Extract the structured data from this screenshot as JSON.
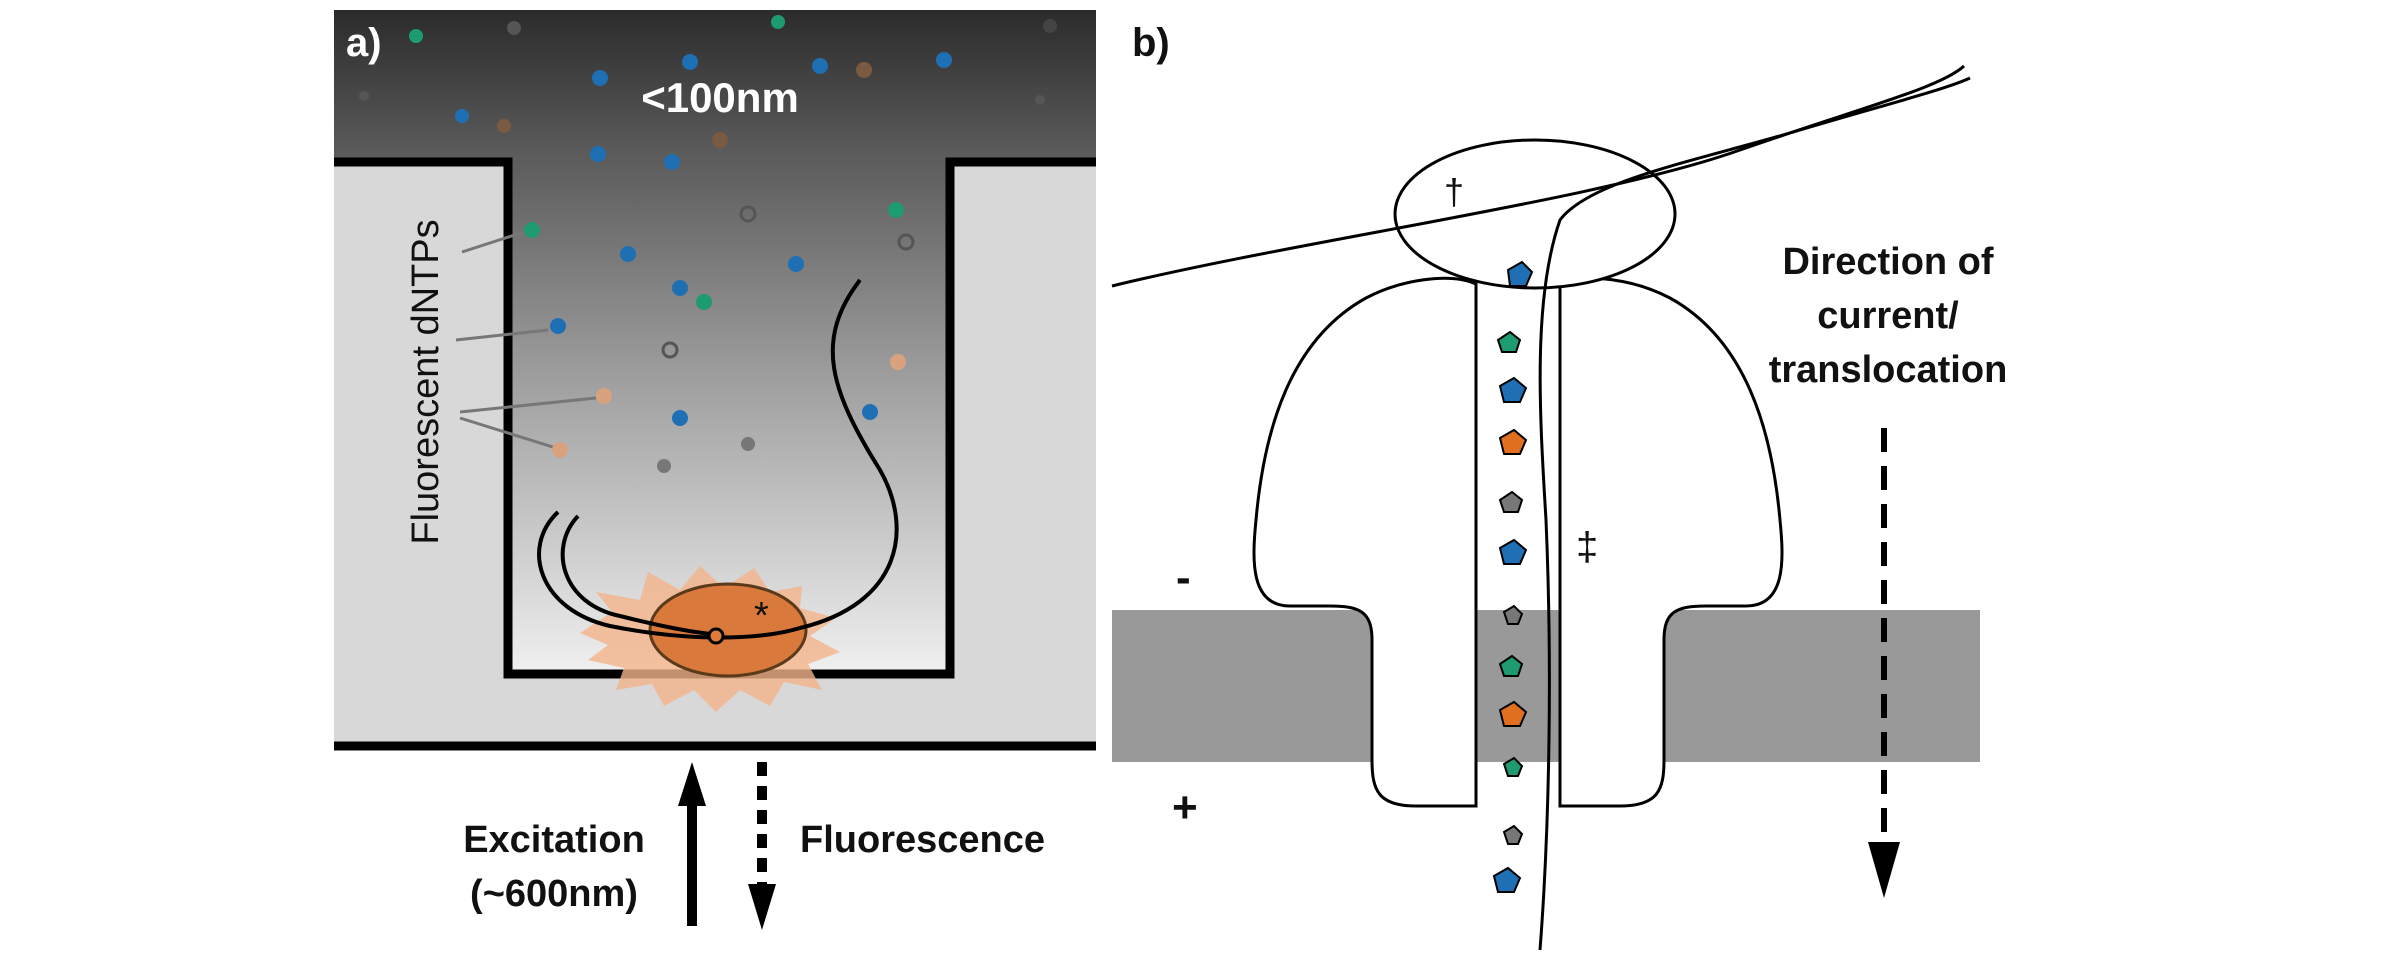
{
  "panel_a": {
    "panel_label": "a)",
    "size_label": "<100nm",
    "dntp_label": "Fluorescent dNTPs",
    "active_marker": "*",
    "excitation_line1": "Excitation",
    "excitation_line2": "(~600nm)",
    "fluorescence_label": "Fluorescence"
  },
  "panel_b": {
    "panel_label": "b)",
    "dagger": "†",
    "double_dagger": "‡",
    "minus_sign": "-",
    "plus_sign": "+",
    "direction_line1": "Direction of",
    "direction_line2": "current/",
    "direction_line3": "translocation"
  },
  "colors": {
    "blue": "#1f6fb5",
    "green": "#1e9b70",
    "orange": "#e0701f",
    "gray": "#7d7d7d",
    "tan": "#d9a27e",
    "membrane": "#999999",
    "well_wall": "#d8d8d8",
    "glow": "#e07b39"
  }
}
